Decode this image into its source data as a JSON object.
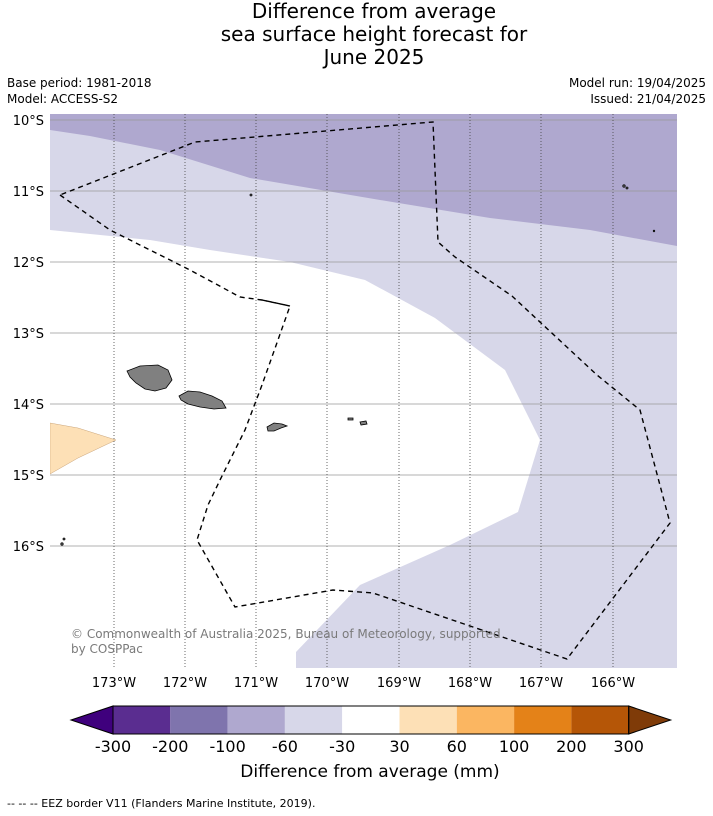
{
  "title": {
    "line1": "Difference from average",
    "line2": "sea surface height forecast for",
    "line3": "June 2025"
  },
  "meta": {
    "base_period": "Base period: 1981-2018",
    "model": "Model: ACCESS-S2",
    "model_run": "Model run: 19/04/2025",
    "issued": "Issued: 21/04/2025"
  },
  "map": {
    "lat_labels": [
      "10°S",
      "11°S",
      "12°S",
      "13°S",
      "14°S",
      "15°S",
      "16°S"
    ],
    "lon_labels": [
      "173°W",
      "172°W",
      "171°W",
      "170°W",
      "169°W",
      "168°W",
      "167°W",
      "166°W"
    ],
    "copyright_line1": "© Commonwealth of Australia 2025, Bureau of Meteorology, supported",
    "copyright_line2": "by COSPPac",
    "land_color": "#808080",
    "eez_style": "dashed"
  },
  "colorbar": {
    "title": "Difference from average (mm)",
    "ticks": [
      "-300",
      "-200",
      "-100",
      "-60",
      "-30",
      "30",
      "60",
      "100",
      "200",
      "300"
    ],
    "colors": [
      "#3f007d",
      "#5a2d90",
      "#7f74ad",
      "#afa8cf",
      "#d7d7e9",
      "#ffffff",
      "#fde0b6",
      "#fbb661",
      "#e48218",
      "#b55607",
      "#7f3b08"
    ]
  },
  "footer": "--  --  -- EEZ border V11 (Flanders Marine Institute, 2019)."
}
